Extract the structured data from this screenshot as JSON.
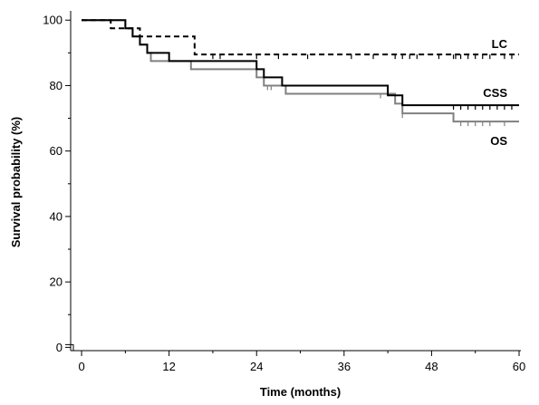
{
  "chart_data": {
    "type": "line",
    "subtype": "kaplan-meier-step",
    "title": "",
    "xlabel": "Time (months)",
    "ylabel": "Survival probability (%)",
    "xlim": [
      -1.5,
      60
    ],
    "ylim": [
      -1,
      102
    ],
    "xticks": [
      0,
      12,
      24,
      36,
      48,
      60
    ],
    "yticks": [
      0,
      20,
      40,
      60,
      80,
      100
    ],
    "grid": false,
    "legend": "none",
    "series": [
      {
        "name": "LC",
        "color": "#000000",
        "style": "dashed",
        "steps": [
          [
            0,
            100
          ],
          [
            4,
            97.5
          ],
          [
            8,
            95
          ],
          [
            15.5,
            89.5
          ],
          [
            60,
            89.5
          ]
        ],
        "censor_x": [
          18,
          19,
          24,
          27,
          31,
          37,
          40,
          43,
          44,
          45,
          46,
          49,
          51,
          51.3,
          52,
          53,
          54,
          55,
          56,
          58,
          59
        ]
      },
      {
        "name": "CSS",
        "color": "#000000",
        "style": "solid",
        "steps": [
          [
            0,
            100
          ],
          [
            6,
            97.5
          ],
          [
            7,
            95
          ],
          [
            8,
            92.5
          ],
          [
            9,
            90
          ],
          [
            12,
            87.5
          ],
          [
            24,
            85
          ],
          [
            25,
            82.5
          ],
          [
            27.5,
            80
          ],
          [
            42,
            77
          ],
          [
            44,
            74
          ],
          [
            60,
            74
          ]
        ],
        "censor_x": [
          51,
          52,
          53,
          54,
          55,
          56,
          57,
          58,
          59
        ]
      },
      {
        "name": "OS",
        "color": "#808080",
        "style": "solid",
        "steps": [
          [
            0,
            100
          ],
          [
            6,
            97.5
          ],
          [
            7,
            95
          ],
          [
            8,
            92.5
          ],
          [
            9,
            90
          ],
          [
            9.5,
            87.5
          ],
          [
            15,
            85
          ],
          [
            24,
            82.5
          ],
          [
            25,
            80
          ],
          [
            28,
            77.5
          ],
          [
            43,
            74.5
          ],
          [
            44,
            71.5
          ],
          [
            51,
            69
          ],
          [
            60,
            69
          ]
        ],
        "censor_x": [
          25.5,
          26,
          41,
          44,
          52,
          53,
          54,
          55,
          56,
          58
        ]
      }
    ]
  }
}
